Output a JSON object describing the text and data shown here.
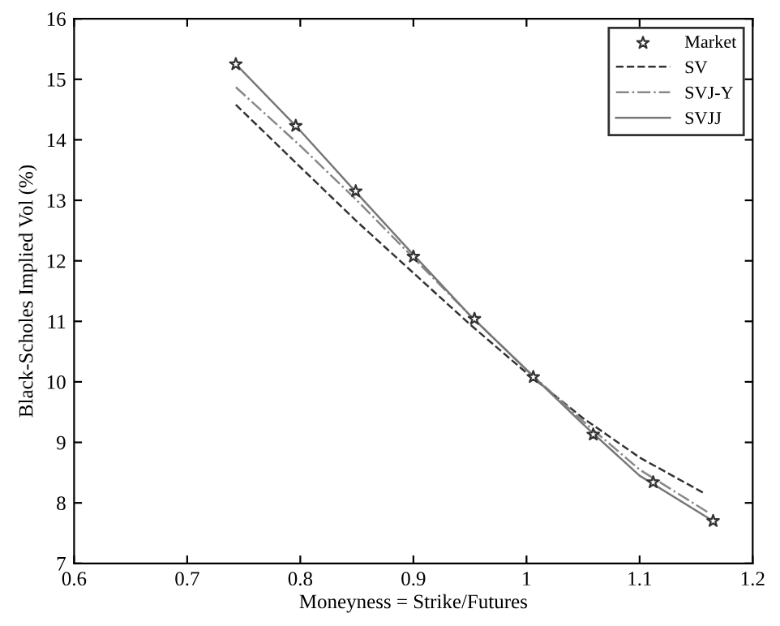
{
  "chart_data": {
    "type": "line",
    "xlabel": "Moneyness = Strike/Futures",
    "ylabel": "Black-Scholes Implied Vol (%)",
    "xlim": [
      0.6,
      1.2
    ],
    "xticks": [
      0.6,
      0.7,
      0.8,
      0.9,
      1,
      1.1,
      1.2
    ],
    "ylim": [
      7,
      16
    ],
    "yticks": [
      7,
      8,
      9,
      10,
      11,
      12,
      13,
      14,
      15,
      16
    ],
    "grid": false,
    "legend": "top right",
    "series": [
      {
        "name": "Market",
        "type": "scatter",
        "marker": "star",
        "color": "#333333",
        "x": [
          0.743,
          0.796,
          0.849,
          0.9,
          0.954,
          1.006,
          1.059,
          1.112,
          1.165
        ],
        "values": [
          15.25,
          14.23,
          13.15,
          12.07,
          11.04,
          10.08,
          9.13,
          8.34,
          7.7
        ]
      },
      {
        "name": "SV",
        "line_style": "dashed",
        "color": "#333333",
        "x": [
          0.743,
          0.8,
          0.85,
          0.9,
          0.95,
          1.0,
          1.05,
          1.1,
          1.158
        ],
        "values": [
          14.58,
          13.55,
          12.65,
          11.8,
          10.95,
          10.15,
          9.4,
          8.75,
          8.15
        ]
      },
      {
        "name": "SVJ-Y",
        "line_style": "dashdot",
        "color": "#888888",
        "x": [
          0.743,
          0.8,
          0.85,
          0.9,
          0.95,
          1.0,
          1.05,
          1.1,
          1.16
        ],
        "values": [
          14.87,
          13.9,
          13.0,
          12.05,
          11.1,
          10.2,
          9.35,
          8.55,
          7.85
        ]
      },
      {
        "name": "SVJJ",
        "line_style": "solid",
        "color": "#777777",
        "x": [
          0.743,
          0.8,
          0.85,
          0.9,
          0.95,
          1.0,
          1.05,
          1.1,
          1.165
        ],
        "values": [
          15.25,
          14.15,
          13.12,
          12.1,
          11.1,
          10.2,
          9.3,
          8.45,
          7.7
        ]
      }
    ]
  }
}
